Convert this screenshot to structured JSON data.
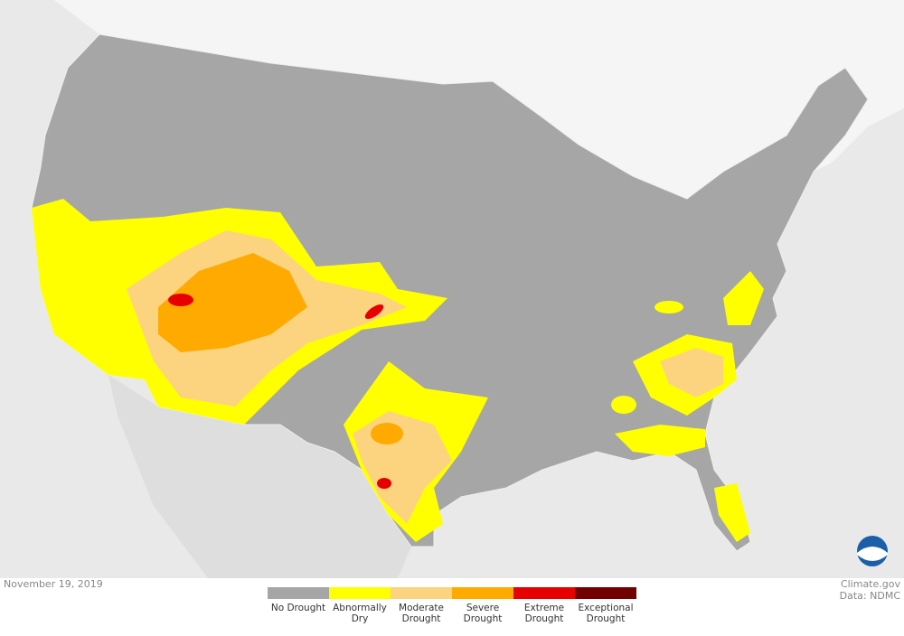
{
  "date": "November 19, 2019",
  "credit": "Climate.gov",
  "source": "Data: NDMC",
  "legend": [
    {
      "label": "No Drought",
      "color": "#a6a6a6"
    },
    {
      "label": "Abnormally Dry",
      "color": "#ffff00"
    },
    {
      "label": "Moderate Drought",
      "color": "#fcd37f"
    },
    {
      "label": "Severe Drought",
      "color": "#ffaa00"
    },
    {
      "label": "Extreme Drought",
      "color": "#e60000"
    },
    {
      "label": "Exceptional Drought",
      "color": "#730000"
    }
  ]
}
